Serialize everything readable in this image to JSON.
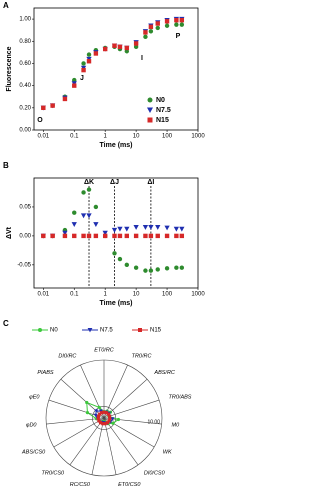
{
  "chart_data": [
    {
      "type": "scatter",
      "label": "A",
      "x_label": "Time (ms)",
      "y_label": "Fluorescence",
      "log_x": true,
      "x": [
        0.01,
        0.02,
        0.05,
        0.1,
        0.2,
        0.3,
        0.5,
        1,
        2,
        3,
        5,
        10,
        20,
        30,
        50,
        100,
        200,
        300
      ],
      "series": [
        {
          "name": "N0",
          "color": "#2e8b2e",
          "marker": "circle",
          "values": [
            0.2,
            0.22,
            0.3,
            0.45,
            0.6,
            0.68,
            0.72,
            0.74,
            0.75,
            0.73,
            0.71,
            0.75,
            0.84,
            0.89,
            0.92,
            0.94,
            0.95,
            0.95
          ]
        },
        {
          "name": "N7.5",
          "color": "#1f2fb0",
          "marker": "triangle",
          "values": [
            0.2,
            0.22,
            0.29,
            0.42,
            0.56,
            0.64,
            0.7,
            0.73,
            0.76,
            0.75,
            0.74,
            0.79,
            0.89,
            0.94,
            0.97,
            0.99,
            1.0,
            1.0
          ]
        },
        {
          "name": "N15",
          "color": "#d62828",
          "marker": "square",
          "values": [
            0.2,
            0.22,
            0.28,
            0.4,
            0.54,
            0.62,
            0.69,
            0.73,
            0.76,
            0.75,
            0.74,
            0.78,
            0.88,
            0.93,
            0.96,
            0.98,
            0.99,
            0.99
          ]
        }
      ],
      "annotations": [
        "O",
        "J",
        "I",
        "P"
      ],
      "xlim": [
        0.005,
        1000
      ],
      "xticks": [
        0.01,
        0.1,
        1,
        10,
        100,
        1000
      ],
      "ylim": [
        0,
        1.1
      ],
      "yticks": [
        {
          "value": 0,
          "label": "0.00"
        },
        {
          "value": 0.2,
          "label": "0.20"
        },
        {
          "value": 0.4,
          "label": "0.40"
        },
        {
          "value": 0.6,
          "label": "0.60"
        },
        {
          "value": 0.8,
          "label": "0.80"
        },
        {
          "value": 1,
          "label": "1.00"
        }
      ],
      "legend": "lower right"
    },
    {
      "type": "scatter",
      "label": "B",
      "x_label": "Time (ms)",
      "y_label": "ΔVt",
      "log_x": true,
      "x": [
        0.01,
        0.02,
        0.05,
        0.1,
        0.2,
        0.3,
        0.5,
        1,
        2,
        3,
        5,
        10,
        20,
        30,
        50,
        100,
        200,
        300
      ],
      "series": [
        {
          "name": "N0",
          "color": "#2e8b2e",
          "marker": "circle",
          "values": [
            0,
            0,
            0.01,
            0.04,
            0.075,
            0.08,
            0.05,
            0,
            -0.03,
            -0.04,
            -0.05,
            -0.055,
            -0.06,
            -0.06,
            -0.058,
            -0.056,
            -0.055,
            -0.055
          ]
        },
        {
          "name": "N7.5",
          "color": "#1f2fb0",
          "marker": "triangle",
          "values": [
            0,
            0,
            0.005,
            0.02,
            0.035,
            0.035,
            0.02,
            0.005,
            0.01,
            0.012,
            0.012,
            0.015,
            0.015,
            0.015,
            0.015,
            0.014,
            0.012,
            0.012
          ]
        },
        {
          "name": "N15",
          "color": "#d62828",
          "marker": "square",
          "values": [
            0,
            0,
            0,
            0,
            0,
            0,
            0,
            0,
            0,
            0,
            0,
            0,
            0,
            0,
            0,
            0,
            0,
            0
          ]
        }
      ],
      "vlines": [
        {
          "label": "ΔK",
          "x": 0.3
        },
        {
          "label": "ΔJ",
          "x": 2
        },
        {
          "label": "ΔI",
          "x": 30
        }
      ],
      "xlim": [
        0.005,
        1000
      ],
      "xticks": [
        0.01,
        0.1,
        1,
        10,
        100,
        1000
      ],
      "ylim": [
        -0.09,
        0.1
      ],
      "yticks": [
        {
          "value": 0.05,
          "label": "0.05"
        },
        {
          "value": 0,
          "label": "0.00"
        },
        {
          "value": -0.05,
          "label": "-0.05"
        }
      ]
    },
    {
      "type": "radar",
      "label": "C",
      "axes": [
        "ET0/RC",
        "TR0/RC",
        "ABS/RC",
        "TR0/ABS",
        "M0",
        "WK",
        "DI0/CS0",
        "ET0/CS0",
        "RC/CS0",
        "TR0/CS0",
        "ABS/CS0",
        "φD0",
        "φE0",
        "PIABS",
        "DI0/RC"
      ],
      "rlim": [
        0,
        10
      ],
      "rticks": [
        {
          "value": 2,
          "label": "2.00"
        },
        {
          "value": 10,
          "label": "10.00"
        }
      ],
      "series": [
        {
          "name": "N0",
          "color": "#3cc83c",
          "marker": "circle",
          "values": [
            1.1,
            1.3,
            1.5,
            0.9,
            2.5,
            1.8,
            1.2,
            0.7,
            0.6,
            0.8,
            1.0,
            1.3,
            3.0,
            4.0,
            2.0
          ]
        },
        {
          "name": "N7.5",
          "color": "#1f2fb0",
          "marker": "triangle",
          "values": [
            1.0,
            1.1,
            1.2,
            1.0,
            1.5,
            1.3,
            1.1,
            0.9,
            0.8,
            0.9,
            1.0,
            1.1,
            1.5,
            1.8,
            1.3
          ]
        },
        {
          "name": "N15",
          "color": "#d62828",
          "marker": "square",
          "values": [
            1,
            1,
            1,
            1,
            1,
            1,
            1,
            1,
            1,
            1,
            1,
            1,
            1,
            1,
            1
          ]
        }
      ],
      "legend": "top"
    }
  ]
}
